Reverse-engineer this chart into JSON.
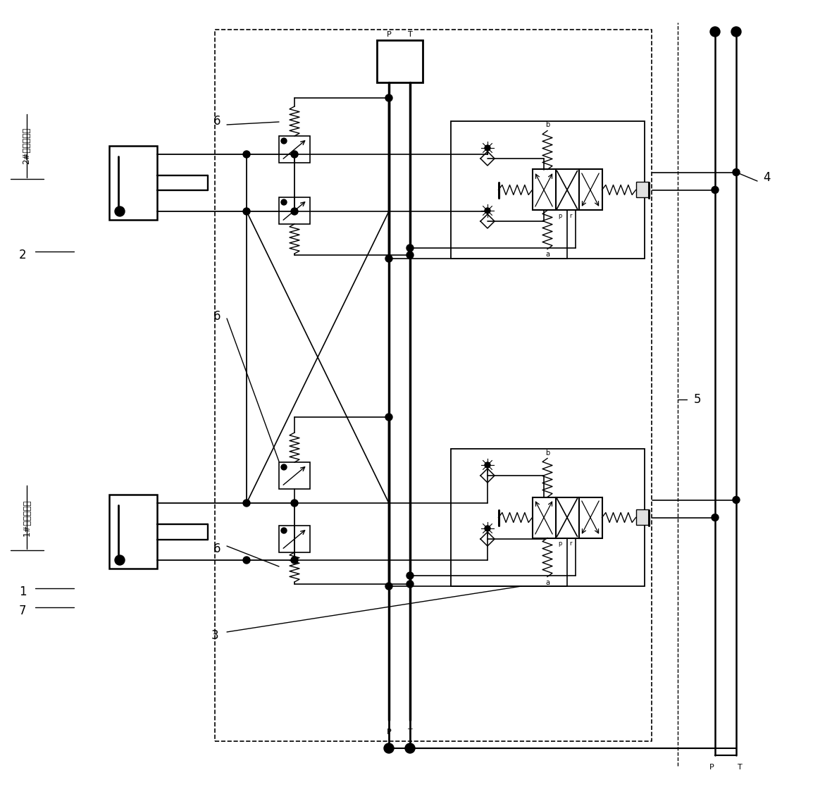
{
  "bg_color": "#ffffff",
  "figsize": [
    11.81,
    11.17
  ],
  "dpi": 100,
  "labels": {
    "1": "1",
    "2": "2",
    "3": "3",
    "4": "4",
    "5": "5",
    "6": "6",
    "7": "7",
    "label1": "1#橱道升降缸",
    "label2": "2#橱道升降缸",
    "P": "P",
    "T": "T"
  }
}
